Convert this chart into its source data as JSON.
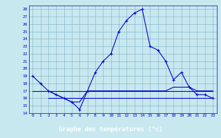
{
  "xlabel": "Graphe des températures (°c)",
  "bg_color": "#c8e8f0",
  "plot_bg_color": "#c8e8f0",
  "label_bg_color": "#0000aa",
  "label_text_color": "#ffffff",
  "line_color": "#0000cc",
  "grid_color": "#88bbcc",
  "xlim": [
    -0.5,
    23.5
  ],
  "ylim": [
    14,
    28.5
  ],
  "yticks": [
    14,
    15,
    16,
    17,
    18,
    19,
    20,
    21,
    22,
    23,
    24,
    25,
    26,
    27,
    28
  ],
  "xticks": [
    0,
    1,
    2,
    3,
    4,
    5,
    6,
    7,
    8,
    9,
    10,
    11,
    12,
    13,
    14,
    15,
    16,
    17,
    18,
    19,
    20,
    21,
    22,
    23
  ],
  "series1_x": [
    0,
    1,
    2,
    3,
    4,
    5,
    6,
    7,
    8,
    9,
    10,
    11,
    12,
    13,
    14,
    15,
    16,
    17,
    18,
    19,
    20,
    21,
    22,
    23
  ],
  "series1_y": [
    19,
    18,
    17,
    16.5,
    16,
    15.5,
    14.5,
    17,
    19.5,
    21,
    22,
    25,
    26.5,
    27.5,
    28,
    23,
    22.5,
    21,
    18.5,
    19.5,
    17.5,
    16.5,
    16.5,
    16
  ],
  "series2_x": [
    0,
    1,
    2,
    3,
    4,
    5,
    6,
    7,
    8,
    9,
    10,
    11,
    12,
    13,
    14,
    15,
    16,
    17,
    18,
    19,
    20,
    21,
    22,
    23
  ],
  "series2_y": [
    17,
    17,
    17,
    17,
    17,
    17,
    17,
    17,
    17,
    17,
    17,
    17,
    17,
    17,
    17,
    17,
    17,
    17,
    17,
    17,
    17,
    17,
    17,
    17
  ],
  "series3_x": [
    2,
    3,
    4,
    5,
    6,
    7,
    8,
    9,
    10,
    11,
    12,
    13,
    14,
    15,
    16,
    17,
    18,
    19,
    20,
    21,
    22,
    23
  ],
  "series3_y": [
    17,
    16.5,
    16,
    15.5,
    15.5,
    17,
    17,
    17,
    17,
    17,
    17,
    17,
    17,
    17,
    17,
    17,
    17.5,
    17.5,
    17.5,
    17,
    17,
    17
  ],
  "series4_x": [
    2,
    3,
    4,
    5,
    6,
    7,
    8,
    9,
    10,
    11,
    12,
    13,
    14,
    15,
    16,
    17,
    18,
    19,
    20,
    21,
    22,
    23
  ],
  "series4_y": [
    16,
    16,
    16,
    16,
    16,
    16,
    16,
    16,
    16,
    16,
    16,
    16,
    16,
    16,
    16,
    16,
    16,
    16,
    16,
    16,
    16,
    16
  ]
}
